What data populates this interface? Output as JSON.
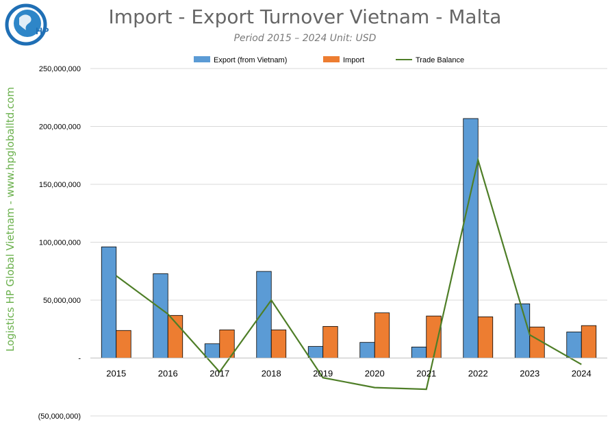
{
  "logo": {
    "text": "HP"
  },
  "side_label": "Logistics HP Global Vietnam - www.hpgloballtd.com",
  "colors": {
    "export": "#5b9bd5",
    "import": "#ed7d31",
    "balance": "#4e7e27",
    "grid": "#d9d9d9"
  },
  "chart_data": {
    "type": "bar",
    "title": "Import - Export Turnover Vietnam - Malta",
    "subtitle": "Period 2015 – 2024  Unit: USD",
    "categories": [
      "2015",
      "2016",
      "2017",
      "2018",
      "2019",
      "2020",
      "2021",
      "2022",
      "2023",
      "2024"
    ],
    "series": [
      {
        "name": "Export (from Vietnam)",
        "type": "bar",
        "values": [
          96000000,
          72800000,
          12300000,
          74800000,
          10000000,
          13500000,
          9500000,
          206800000,
          46800000,
          22500000
        ]
      },
      {
        "name": "Import",
        "type": "bar",
        "values": [
          23800000,
          36800000,
          24300000,
          24300000,
          27300000,
          39000000,
          36300000,
          35600000,
          26800000,
          28000000
        ]
      },
      {
        "name": "Trade Balance",
        "type": "line",
        "values": [
          71000000,
          38000000,
          -12000000,
          50000000,
          -17000000,
          -25500000,
          -27000000,
          171000000,
          20000000,
          -5500000
        ]
      }
    ],
    "ylim": [
      -50000000,
      250000000
    ],
    "yticks": [
      -50000000,
      0,
      50000000,
      100000000,
      150000000,
      200000000,
      250000000
    ],
    "ytick_labels": [
      "(50,000,000)",
      "-",
      "50,000,000",
      "100,000,000",
      "150,000,000",
      "200,000,000",
      "250,000,000"
    ],
    "grid": true,
    "legend": "top"
  }
}
